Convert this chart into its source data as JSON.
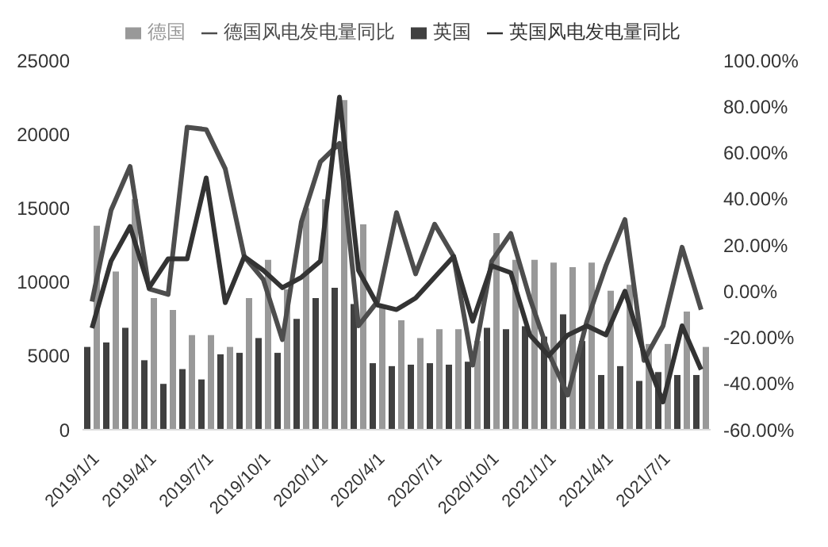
{
  "chart_data": {
    "type": "bar",
    "categories": [
      "2019/1/1",
      null,
      null,
      "2019/4/1",
      null,
      null,
      "2019/7/1",
      null,
      null,
      "2019/10/1",
      null,
      null,
      "2020/1/1",
      null,
      null,
      "2020/4/1",
      null,
      null,
      "2020/7/1",
      null,
      null,
      "2020/10/1",
      null,
      null,
      "2021/1/1",
      null,
      null,
      "2021/4/1",
      null,
      null,
      "2021/7/1",
      null,
      null
    ],
    "series": [
      {
        "name": "英国",
        "color": "#404040",
        "values": [
          5600,
          5900,
          6900,
          4700,
          3100,
          4100,
          3400,
          5100,
          5200,
          6200,
          5200,
          7500,
          8900,
          9600,
          8500,
          4500,
          4300,
          4400,
          4500,
          4400,
          4600,
          6900,
          6800,
          7000,
          6300,
          7800,
          6000,
          3700,
          4300,
          3300,
          3900,
          3700,
          3700
        ]
      },
      {
        "name": "德国",
        "color": "#999999",
        "values": [
          13800,
          10700,
          15600,
          8900,
          8100,
          6400,
          6400,
          5600,
          8900,
          11500,
          9500,
          15000,
          15600,
          22300,
          13900,
          8300,
          7400,
          6200,
          6800,
          6800,
          6000,
          13300,
          11500,
          11500,
          11300,
          11000,
          11300,
          9400,
          9800,
          5800,
          5800,
          8000,
          5600
        ]
      },
      {
        "name": "德国风电发电量同比",
        "type": "line",
        "axis": "y2",
        "color": "#4d4d4d",
        "values": [
          -4.5,
          35,
          54,
          1,
          -1.4,
          71,
          70,
          53,
          15,
          5,
          -21,
          30,
          56,
          64,
          -15,
          -4.5,
          34,
          7.5,
          29,
          15,
          -32,
          13,
          25,
          -3,
          -27,
          -45,
          -13,
          11,
          31,
          -30,
          -15,
          19,
          -8
        ]
      },
      {
        "name": "英国风电发电量同比",
        "type": "line",
        "axis": "y2",
        "color": "#333333",
        "values": [
          -16,
          13,
          28,
          1.5,
          14,
          14,
          49,
          -5,
          15,
          9,
          1.5,
          6,
          13,
          84,
          9,
          -6,
          -8,
          -3,
          6,
          15,
          -13,
          11,
          8,
          -19,
          -28,
          -19,
          -15,
          -19,
          0,
          -27,
          -48,
          -15,
          -34
        ]
      }
    ],
    "ylim": [
      0,
      25000
    ],
    "yticks": [
      0,
      5000,
      10000,
      15000,
      20000,
      25000
    ],
    "y2lim": [
      -60,
      100
    ],
    "y2ticks": [
      {
        "value": -60,
        "label": "-60.00%"
      },
      {
        "value": -40,
        "label": "-40.00%"
      },
      {
        "value": -20,
        "label": "-20.00%"
      },
      {
        "value": 0,
        "label": "0.00%"
      },
      {
        "value": 20,
        "label": "20.00%"
      },
      {
        "value": 40,
        "label": "40.00%"
      },
      {
        "value": 60,
        "label": "60.00%"
      },
      {
        "value": 80,
        "label": "80.00%"
      },
      {
        "value": 100,
        "label": "100.00%"
      }
    ],
    "legend": "top",
    "grid": false,
    "marker": "none",
    "line_style": "solid"
  }
}
